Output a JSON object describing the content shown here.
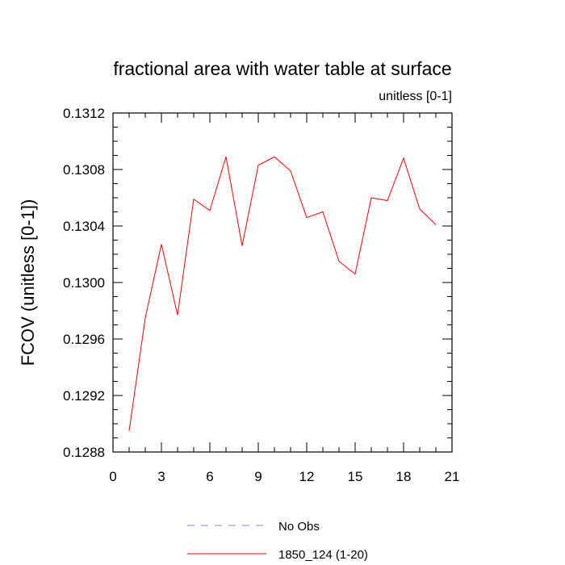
{
  "chart_data": {
    "type": "line",
    "title": "fractional area with water table at surface",
    "subtitle": "unitless [0-1]",
    "xlabel": "",
    "ylabel": "FCOV  (unitless [0-1])",
    "xlim": [
      0,
      21
    ],
    "ylim": [
      0.1288,
      0.1312
    ],
    "x_ticks": [
      "0",
      "3",
      "6",
      "9",
      "12",
      "15",
      "18",
      "21"
    ],
    "y_ticks": [
      "0.1288",
      "0.1292",
      "0.1296",
      "0.1300",
      "0.1304",
      "0.1308",
      "0.1312"
    ],
    "grid": false,
    "legend_position": "bottom-center",
    "series": [
      {
        "name": "No Obs",
        "style": "dashed",
        "color": "#8080ff",
        "x": [],
        "values": []
      },
      {
        "name": "1850_124 (1-20)",
        "style": "solid",
        "color": "#ff0000",
        "x": [
          1,
          2,
          3,
          4,
          5,
          6,
          7,
          8,
          9,
          10,
          11,
          12,
          13,
          14,
          15,
          16,
          17,
          18,
          19,
          20
        ],
        "values": [
          0.12895,
          0.12975,
          0.13027,
          0.12977,
          0.13059,
          0.13051,
          0.13089,
          0.13026,
          0.13083,
          0.13089,
          0.13079,
          0.13046,
          0.1305,
          0.13015,
          0.13006,
          0.1306,
          0.13058,
          0.13088,
          0.13052,
          0.13041
        ]
      }
    ]
  }
}
